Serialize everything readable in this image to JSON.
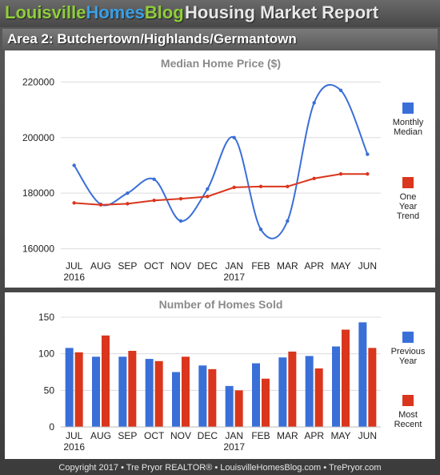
{
  "header": {
    "brand_part1": "Louisville",
    "brand_part2": "Homes",
    "brand_part3": "Blog",
    "report_title": "Housing Market Report",
    "area_title": "Area 2: Butchertown/Highlands/Germantown"
  },
  "footer": {
    "text": "Copyright 2017 • Tre Pryor REALTOR® • LouisvilleHomesBlog.com • TrePryor.com"
  },
  "colors": {
    "blue": "#3a6fd8",
    "red": "#d9361d",
    "grid": "#dcdcdc",
    "title_gray": "#8a8a8a"
  },
  "chart_data": [
    {
      "type": "line",
      "title": "Median Home Price ($)",
      "categories": [
        "JUL",
        "AUG",
        "SEP",
        "OCT",
        "NOV",
        "DEC",
        "JAN",
        "FEB",
        "MAR",
        "APR",
        "MAY",
        "JUN"
      ],
      "year_labels": [
        "2016",
        "",
        "",
        "",
        "",
        "",
        "2017",
        "",
        "",
        "",
        "",
        ""
      ],
      "y_ticks": [
        "160000",
        "180000",
        "200000",
        "220000"
      ],
      "ylim": [
        157000,
        225000
      ],
      "grid": true,
      "legend_position": "right",
      "series": [
        {
          "name_lines": [
            "Monthly",
            "Median"
          ],
          "color": "#3a6fd8",
          "smooth": true,
          "values": [
            190000,
            176000,
            180000,
            185000,
            170000,
            181500,
            200000,
            167000,
            170000,
            212500,
            217000,
            194000
          ]
        },
        {
          "name_lines": [
            "One",
            "Year",
            "Trend"
          ],
          "color": "#d9361d",
          "smooth": false,
          "values": [
            176500,
            175800,
            176200,
            177400,
            178000,
            178800,
            182100,
            182400,
            182400,
            185300,
            186900,
            186900
          ]
        }
      ]
    },
    {
      "type": "bar",
      "title": "Number of Homes Sold",
      "categories": [
        "JUL",
        "AUG",
        "SEP",
        "OCT",
        "NOV",
        "DEC",
        "JAN",
        "FEB",
        "MAR",
        "APR",
        "MAY",
        "JUN"
      ],
      "year_labels": [
        "2016",
        "",
        "",
        "",
        "",
        "",
        "2017",
        "",
        "",
        "",
        "",
        ""
      ],
      "y_ticks": [
        "0",
        "50",
        "100",
        "150"
      ],
      "ylim": [
        0,
        150
      ],
      "grid": true,
      "legend_position": "right",
      "series": [
        {
          "name_lines": [
            "Previous",
            "Year"
          ],
          "color": "#3a6fd8",
          "values": [
            108,
            96,
            96,
            93,
            75,
            84,
            56,
            87,
            95,
            97,
            110,
            143
          ]
        },
        {
          "name_lines": [
            "Most",
            "Recent"
          ],
          "color": "#d9361d",
          "values": [
            102,
            125,
            104,
            90,
            96,
            79,
            50,
            66,
            103,
            80,
            133,
            108
          ]
        }
      ]
    }
  ]
}
